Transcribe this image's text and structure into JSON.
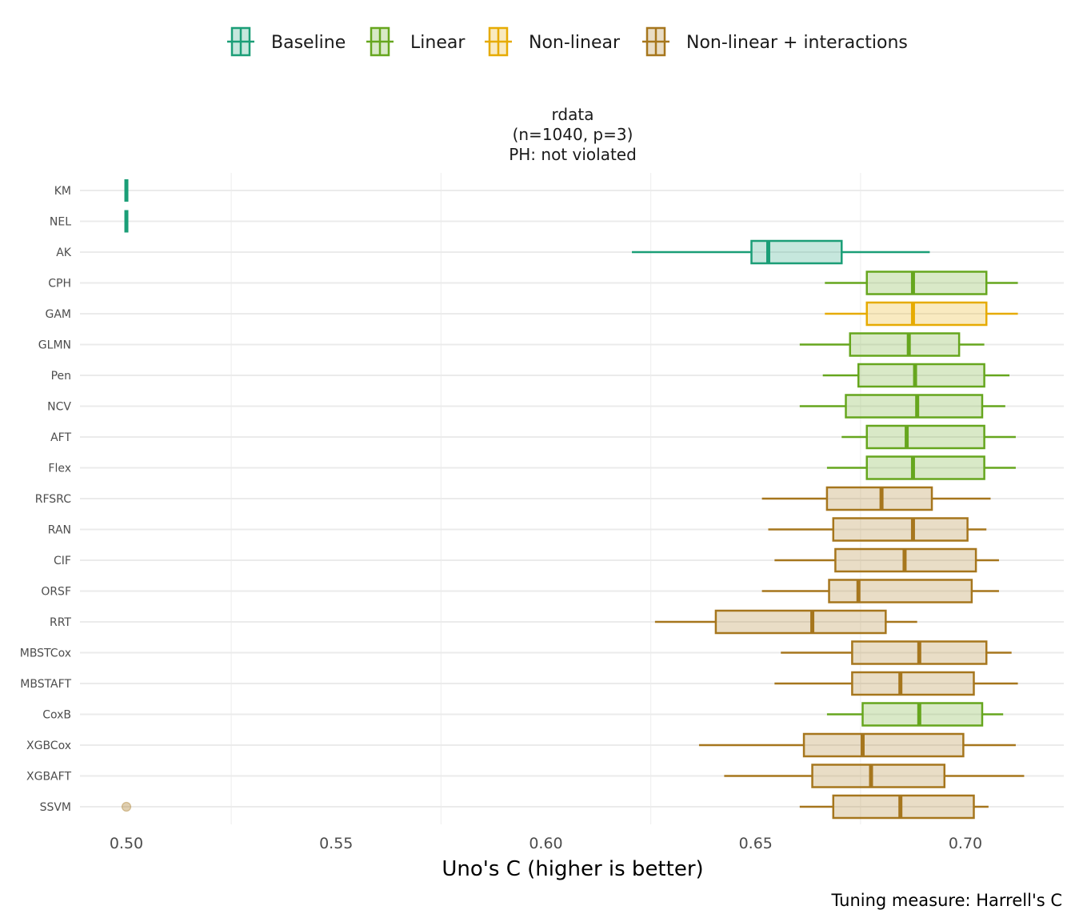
{
  "chart_data": {
    "type": "boxplot",
    "orientation": "horizontal",
    "title_lines": [
      "rdata",
      "(n=1040, p=3)",
      "PH: not violated"
    ],
    "xlabel": "Uno's C (higher is better)",
    "ylabel": "",
    "caption": "Tuning measure: Harrell's C",
    "xlim": [
      0.488,
      0.722
    ],
    "xticks": [
      0.5,
      0.55,
      0.6,
      0.65,
      0.7
    ],
    "xtick_labels": [
      "0.50",
      "0.55",
      "0.60",
      "0.65",
      "0.70"
    ],
    "grid": true,
    "legend_position": "top",
    "groups": [
      {
        "name": "Baseline",
        "color": "#1b9e77"
      },
      {
        "name": "Linear",
        "color": "#66a61e"
      },
      {
        "name": "Non-linear",
        "color": "#e6ab02"
      },
      {
        "name": "Non-linear + interactions",
        "color": "#a6761d"
      }
    ],
    "learners": [
      {
        "name": "KM",
        "group": 0,
        "min": 0.5,
        "q1": 0.5,
        "median": 0.5,
        "q3": 0.5,
        "max": 0.5,
        "outliers": []
      },
      {
        "name": "NEL",
        "group": 0,
        "min": 0.5,
        "q1": 0.5,
        "median": 0.5,
        "q3": 0.5,
        "max": 0.5,
        "outliers": []
      },
      {
        "name": "AK",
        "group": 0,
        "min": 0.6205,
        "q1": 0.649,
        "median": 0.653,
        "q3": 0.6705,
        "max": 0.6915,
        "outliers": []
      },
      {
        "name": "CPH",
        "group": 1,
        "min": 0.6665,
        "q1": 0.6765,
        "median": 0.6875,
        "q3": 0.705,
        "max": 0.7125,
        "outliers": []
      },
      {
        "name": "GAM",
        "group": 2,
        "min": 0.6665,
        "q1": 0.6765,
        "median": 0.6875,
        "q3": 0.705,
        "max": 0.7125,
        "outliers": []
      },
      {
        "name": "GLMN",
        "group": 1,
        "min": 0.6605,
        "q1": 0.6725,
        "median": 0.6865,
        "q3": 0.6985,
        "max": 0.7045,
        "outliers": []
      },
      {
        "name": "Pen",
        "group": 1,
        "min": 0.666,
        "q1": 0.6745,
        "median": 0.688,
        "q3": 0.7045,
        "max": 0.7105,
        "outliers": []
      },
      {
        "name": "NCV",
        "group": 1,
        "min": 0.6605,
        "q1": 0.6715,
        "median": 0.6885,
        "q3": 0.704,
        "max": 0.7095,
        "outliers": []
      },
      {
        "name": "AFT",
        "group": 1,
        "min": 0.6705,
        "q1": 0.6765,
        "median": 0.686,
        "q3": 0.7045,
        "max": 0.712,
        "outliers": []
      },
      {
        "name": "Flex",
        "group": 1,
        "min": 0.667,
        "q1": 0.6765,
        "median": 0.6875,
        "q3": 0.7045,
        "max": 0.712,
        "outliers": []
      },
      {
        "name": "RFSRC",
        "group": 3,
        "min": 0.6515,
        "q1": 0.667,
        "median": 0.68,
        "q3": 0.692,
        "max": 0.706,
        "outliers": []
      },
      {
        "name": "RAN",
        "group": 3,
        "min": 0.653,
        "q1": 0.6685,
        "median": 0.6875,
        "q3": 0.7005,
        "max": 0.705,
        "outliers": []
      },
      {
        "name": "CIF",
        "group": 3,
        "min": 0.6545,
        "q1": 0.669,
        "median": 0.6855,
        "q3": 0.7025,
        "max": 0.708,
        "outliers": []
      },
      {
        "name": "ORSF",
        "group": 3,
        "min": 0.6515,
        "q1": 0.6675,
        "median": 0.6745,
        "q3": 0.7015,
        "max": 0.708,
        "outliers": []
      },
      {
        "name": "RRT",
        "group": 3,
        "min": 0.626,
        "q1": 0.6405,
        "median": 0.6635,
        "q3": 0.681,
        "max": 0.6885,
        "outliers": []
      },
      {
        "name": "MBSTCox",
        "group": 3,
        "min": 0.656,
        "q1": 0.673,
        "median": 0.689,
        "q3": 0.705,
        "max": 0.711,
        "outliers": []
      },
      {
        "name": "MBSTAFT",
        "group": 3,
        "min": 0.6545,
        "q1": 0.673,
        "median": 0.6845,
        "q3": 0.702,
        "max": 0.7125,
        "outliers": []
      },
      {
        "name": "CoxB",
        "group": 1,
        "min": 0.667,
        "q1": 0.6755,
        "median": 0.689,
        "q3": 0.704,
        "max": 0.709,
        "outliers": []
      },
      {
        "name": "XGBCox",
        "group": 3,
        "min": 0.6365,
        "q1": 0.6615,
        "median": 0.6755,
        "q3": 0.6995,
        "max": 0.712,
        "outliers": []
      },
      {
        "name": "XGBAFT",
        "group": 3,
        "min": 0.6425,
        "q1": 0.6635,
        "median": 0.6775,
        "q3": 0.695,
        "max": 0.714,
        "outliers": []
      },
      {
        "name": "SSVM",
        "group": 3,
        "min": 0.6605,
        "q1": 0.6685,
        "median": 0.6845,
        "q3": 0.702,
        "max": 0.7055,
        "outliers": [
          0.5
        ]
      }
    ]
  }
}
